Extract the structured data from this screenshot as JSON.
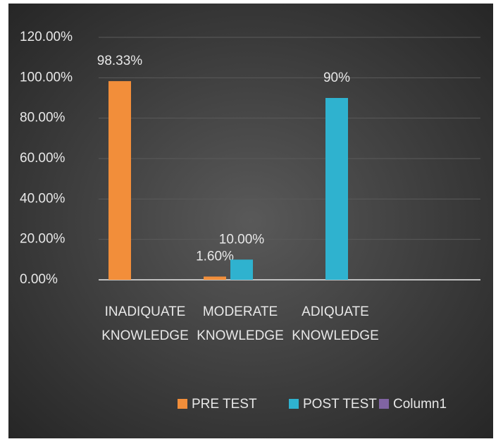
{
  "chart_data": {
    "type": "bar",
    "categories": [
      "INADIQUATE KNOWLEDGE",
      "MODERATE KNOWLEDGE",
      "ADIQUATE KNOWLEDGE"
    ],
    "series": [
      {
        "name": "PRE TEST",
        "color": "#f28e3a",
        "values": [
          98.33,
          1.6,
          null
        ],
        "value_labels": [
          "98.33%",
          "1.60%",
          null
        ]
      },
      {
        "name": "POST TEST",
        "color": "#2fb2cf",
        "values": [
          null,
          10,
          90
        ],
        "value_labels": [
          null,
          "10.00%",
          "90%"
        ]
      },
      {
        "name": "Column1",
        "color": "#8064a2",
        "values": [
          null,
          null,
          null
        ]
      }
    ],
    "ylim": [
      0,
      120
    ],
    "yticks": [
      {
        "value": 0,
        "label": "0.00%"
      },
      {
        "value": 20,
        "label": "20.00%"
      },
      {
        "value": 40,
        "label": "40.00%"
      },
      {
        "value": 60,
        "label": "60.00%"
      },
      {
        "value": 80,
        "label": "80.00%"
      },
      {
        "value": 100,
        "label": "100.00%"
      },
      {
        "value": 120,
        "label": "120.00%"
      }
    ],
    "grid": true,
    "legend": "bottom"
  }
}
